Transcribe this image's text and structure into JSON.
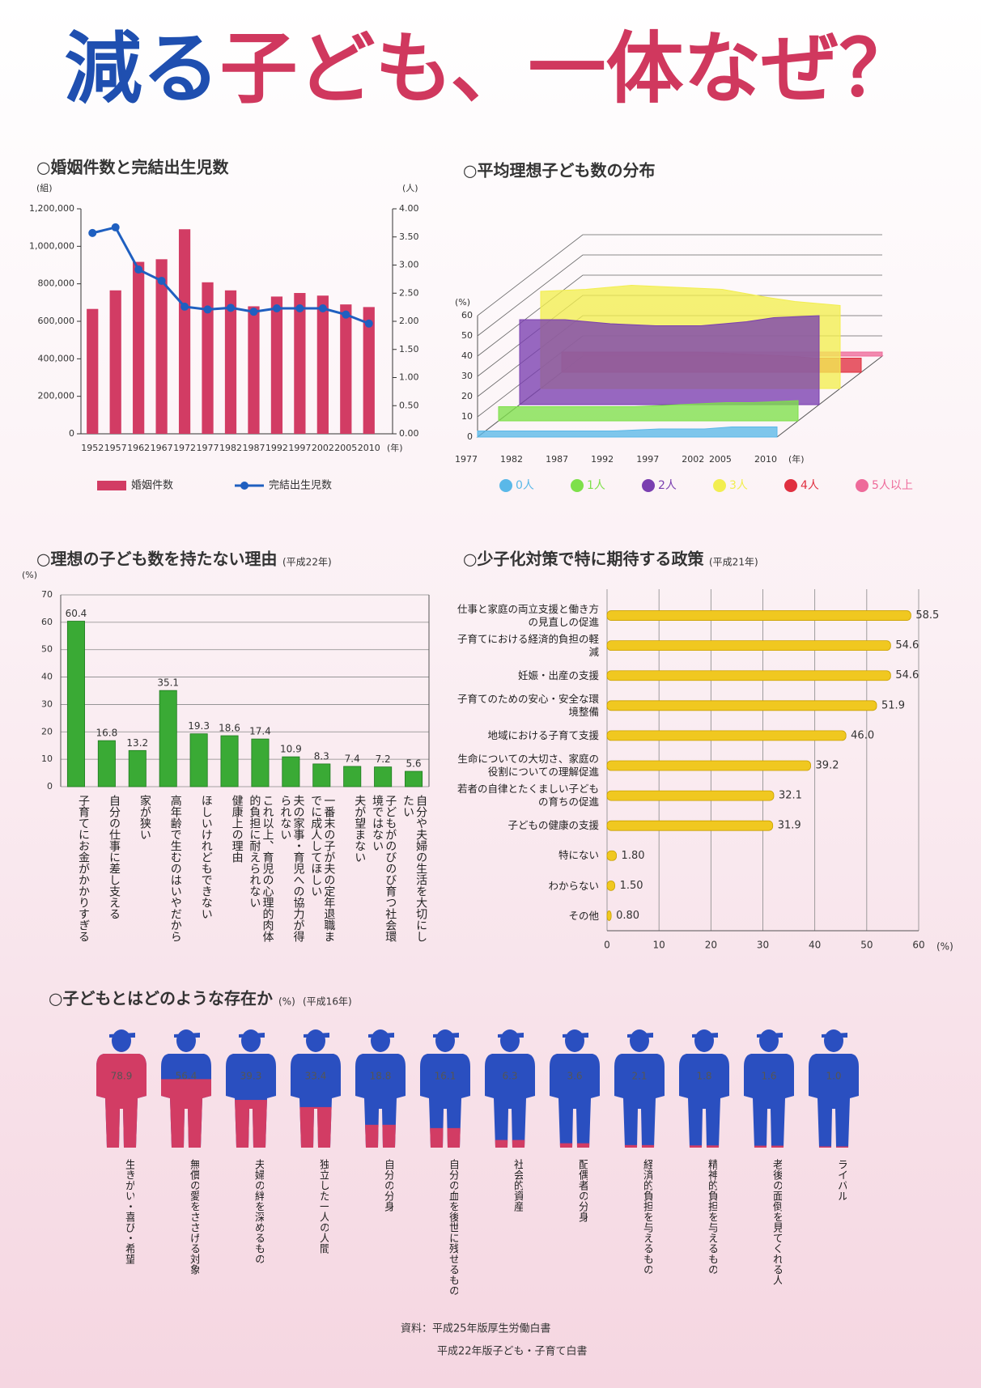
{
  "title": [
    "減る",
    "子ども、一体なぜ？"
  ],
  "chart_data": [
    {
      "type": "bar_line",
      "title": "○婚姻件数と完結出生児数",
      "y_label": "(組)",
      "y2_label": "(人)",
      "x_label": "(年)",
      "categories": [
        "1952",
        "1957",
        "1962",
        "1967",
        "1972",
        "1977",
        "1982",
        "1987",
        "1992",
        "1997",
        "2002",
        "2005",
        "2010"
      ],
      "series": [
        {
          "name": "婚姻件数",
          "type": "bar",
          "color": "#d23c64",
          "values": [
            666000,
            765000,
            917000,
            931000,
            1091000,
            808000,
            765000,
            680000,
            732000,
            751000,
            737000,
            690000,
            676000
          ]
        },
        {
          "name": "完結出生児数",
          "type": "line",
          "axis": "y2",
          "color": "#1f5fc0",
          "values": [
            3.57,
            3.67,
            2.92,
            2.72,
            2.26,
            2.21,
            2.24,
            2.17,
            2.23,
            2.23,
            2.23,
            2.12,
            1.96
          ]
        }
      ],
      "ylim": [
        0,
        1200000
      ],
      "yticks": [
        0,
        {
          "value": 200000,
          "label": "200,000"
        },
        {
          "value": 400000,
          "label": "400,000"
        },
        {
          "value": 600000,
          "label": "600,000"
        },
        {
          "value": 800000,
          "label": "800,000"
        },
        {
          "value": 1000000,
          "label": "1,000,000"
        },
        {
          "value": 1200000,
          "label": "1,200,000"
        }
      ],
      "y2lim": [
        0,
        4
      ],
      "y2ticks": [
        {
          "value": 0,
          "label": "0.00"
        },
        {
          "value": 0.5,
          "label": "0.50"
        },
        {
          "value": 1,
          "label": "1.00"
        },
        {
          "value": 1.5,
          "label": "1.50"
        },
        {
          "value": 2,
          "label": "2.00"
        },
        {
          "value": 2.5,
          "label": "2.50"
        },
        {
          "value": 3,
          "label": "3.00"
        },
        {
          "value": 3.5,
          "label": "3.50"
        },
        {
          "value": 4,
          "label": "4.00"
        }
      ]
    },
    {
      "type": "area3d",
      "title": "○平均理想子ども数の分布",
      "y_label": "(%)",
      "x_label": "(年)",
      "x": [
        1977,
        1982,
        1987,
        1992,
        1997,
        2002,
        2005,
        2010
      ],
      "xlim": [
        1977,
        2010
      ],
      "series": [
        {
          "name": "0人",
          "color": "#5ab8e8",
          "values": [
            3,
            3,
            3,
            3,
            4,
            4,
            5,
            5
          ]
        },
        {
          "name": "1人",
          "color": "#7ee04a",
          "values": [
            7,
            7,
            7,
            7,
            8,
            9,
            9,
            10
          ]
        },
        {
          "name": "2人",
          "color": "#7a3fb0",
          "values": [
            42,
            42,
            40,
            39,
            39,
            41,
            43,
            44
          ]
        },
        {
          "name": "3人",
          "color": "#f2ee50",
          "values": [
            48,
            49,
            51,
            50,
            49,
            45,
            43,
            41
          ]
        },
        {
          "name": "4人",
          "color": "#e03040",
          "values": [
            10,
            10,
            10,
            10,
            9,
            8,
            7,
            7
          ]
        },
        {
          "name": "5人以上",
          "color": "#ee6a9a",
          "values": [
            2,
            2,
            2,
            2,
            2,
            2,
            2,
            2
          ]
        }
      ],
      "ylim": [
        0,
        60
      ],
      "yticks": [
        0,
        10,
        20,
        30,
        40,
        50,
        60
      ]
    },
    {
      "type": "bar",
      "title": "○理想の子ども数を持たない理由",
      "subtitle": "(平成22年)",
      "y_label": "(%)",
      "categories": [
        "子育てにお金がかかりすぎる",
        "自分の仕事に差し支える",
        "家が狭い",
        "高年齢で生むのはいやだから",
        "ほしいけれどもできない",
        "健康上の理由",
        "これ以上、育児の心理的肉体的負担に耐えられない",
        "夫の家事・育児への協力が得られない",
        "一番末の子が夫の定年退職までに成人してほしい",
        "夫が望まない",
        "子どもがのびのび育つ社会環境ではない",
        "自分や夫婦の生活を大切にしたい"
      ],
      "values": [
        60.4,
        16.8,
        13.2,
        35.1,
        19.3,
        18.6,
        17.4,
        10.9,
        8.3,
        7.4,
        7.2,
        5.6
      ],
      "color": "#3aaa35",
      "ylim": [
        0,
        70
      ],
      "yticks": [
        0,
        10,
        20,
        30,
        40,
        50,
        60,
        70
      ],
      "grid": true
    },
    {
      "type": "hbar",
      "title": "○少子化対策で特に期待する政策",
      "subtitle": "(平成21年)",
      "x_label": "(%)",
      "categories": [
        "仕事と家庭の両立支援と働き方の見直しの促進",
        "子育てにおける経済的負担の軽減",
        "妊娠・出産の支援",
        "子育てのための安心・安全な環境整備",
        "地域における子育て支援",
        "生命についての大切さ、家庭の役割についての理解促進",
        "若者の自律とたくましい子どもの育ちの促進",
        "子どもの健康の支援",
        "特にない",
        "わからない",
        "その他"
      ],
      "values": [
        58.5,
        54.6,
        54.6,
        51.9,
        46,
        39.2,
        32.1,
        31.9,
        1.8,
        1.5,
        0.8
      ],
      "value_labels": [
        "58.5",
        "54.6",
        "54.6",
        "51.9",
        "46.0",
        "39.2",
        "32.1",
        "31.9",
        "1.80",
        "1.50",
        "0.80"
      ],
      "color": "#f0c820",
      "xlim": [
        0,
        60
      ],
      "xticks": [
        0,
        10,
        20,
        30,
        40,
        50,
        60
      ],
      "grid": true
    },
    {
      "type": "pictogram",
      "title": "○子どもとはどのような存在か",
      "unit": "(%)",
      "subtitle": "(平成16年)",
      "categories": [
        "生きがい・喜び・希望",
        "無償の愛をささげる対象",
        "夫婦の絆を深めるもの",
        "独立した一人の人間",
        "自分の分身",
        "自分の血を後世に残せるもの",
        "社会的資産",
        "配偶者の分身",
        "経済的負担を与えるもの",
        "精神的負担を与えるもの",
        "老後の面倒を見てくれる人",
        "ライバル"
      ],
      "values": [
        78.9,
        56.4,
        39.3,
        33.4,
        18.8,
        16.1,
        6.3,
        3.6,
        2.1,
        1.8,
        1.6,
        1.0
      ],
      "value_labels": [
        "78.9",
        "56.4",
        "39.3",
        "33.4",
        "18.8",
        "16.1",
        "6.3",
        "3.6",
        "2.1",
        "1.8",
        "1.6",
        "1.0"
      ],
      "color": "#d23c64",
      "base_color": "#2a4fc0",
      "ylim": [
        0,
        100
      ]
    }
  ],
  "source": [
    "資料：平成25年版厚生労働白書",
    "平成22年版子ども・子育て白書"
  ]
}
